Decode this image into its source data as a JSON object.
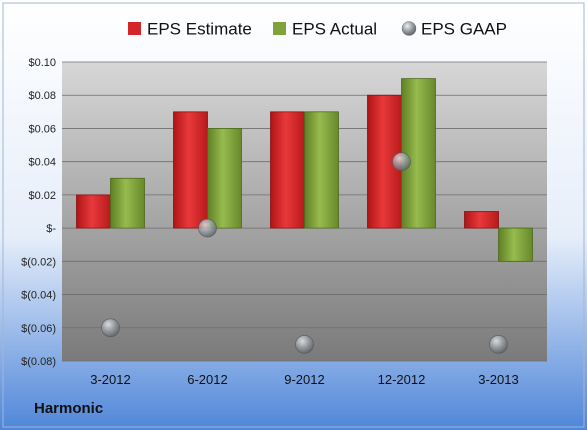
{
  "company": "Harmonic",
  "colors": {
    "estimate": "#d42528",
    "actual": "#7fa23a",
    "gaap": "#9a9ea2",
    "plot_bg_top": "#d7d7d7",
    "plot_bg_bottom": "#7a7a7a",
    "page_bg_top": "#ffffff",
    "page_bg_bottom": "#4f86d9"
  },
  "chart_data": {
    "type": "bar",
    "categories": [
      "3-2012",
      "6-2012",
      "9-2012",
      "12-2012",
      "3-2013"
    ],
    "series": [
      {
        "name": "EPS Estimate",
        "type": "bar",
        "values": [
          0.02,
          0.07,
          0.07,
          0.08,
          0.01
        ]
      },
      {
        "name": "EPS Actual",
        "type": "bar",
        "values": [
          0.03,
          0.06,
          0.07,
          0.09,
          -0.02
        ]
      },
      {
        "name": "EPS GAAP",
        "type": "scatter",
        "values": [
          -0.06,
          0.0,
          -0.07,
          0.04,
          -0.07
        ]
      }
    ],
    "ylim": [
      -0.08,
      0.1
    ],
    "yticks": [
      0.1,
      0.08,
      0.06,
      0.04,
      0.02,
      0.0,
      -0.02,
      -0.04,
      -0.06,
      -0.08
    ],
    "ytick_labels": [
      "$0.10",
      "$0.08",
      "$0.06",
      "$0.04",
      "$0.02",
      "$-",
      "$(0.02)",
      "$(0.04)",
      "$(0.06)",
      "$(0.08)"
    ],
    "grid": true,
    "legend_position": "top"
  }
}
